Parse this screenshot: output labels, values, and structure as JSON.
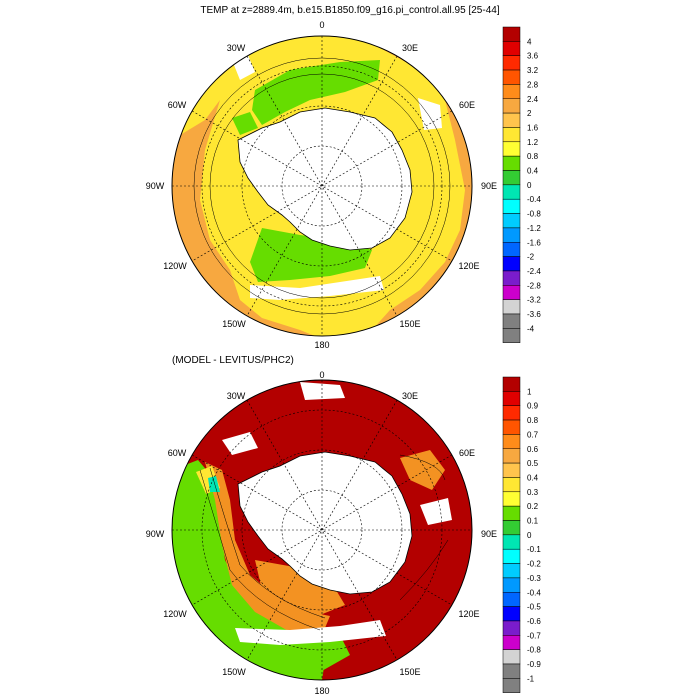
{
  "panel_top": {
    "title": "TEMP at z=2889.4m, b.e15.B1850.f09_g16.pi_control.all.95 [25-44]",
    "longitude_labels": {
      "lon0": "0",
      "lon30e": "30E",
      "lon60e": "60E",
      "lon90e": "90E",
      "lon120e": "120E",
      "lon150e": "150E",
      "lon180": "180",
      "lon150w": "150W",
      "lon120w": "120W",
      "lon90w": "90W",
      "lon60w": "60W",
      "lon30w": "30W"
    },
    "colorbar": {
      "labels": [
        "4",
        "3.6",
        "3.2",
        "2.8",
        "2.4",
        "2",
        "1.6",
        "1.2",
        "0.8",
        "0.4",
        "0",
        "-0.4",
        "-0.8",
        "-1.2",
        "-1.6",
        "-2",
        "-2.4",
        "-2.8",
        "-3.2",
        "-3.6",
        "-4"
      ],
      "colors": [
        "#b30000",
        "#e00000",
        "#ff2a00",
        "#ff5500",
        "#ff8c1a",
        "#f7a840",
        "#ffc44d",
        "#ffe733",
        "#ffff33",
        "#66dd00",
        "#33cc33",
        "#00e6b3",
        "#00ffff",
        "#00ccff",
        "#0099ff",
        "#0066ff",
        "#0000ff",
        "#7a1ccc",
        "#cc00cc",
        "#d3d3d3",
        "#808080"
      ]
    }
  },
  "panel_bottom": {
    "title": "(MODEL - LEVITUS/PHC2)",
    "longitude_labels": {
      "lon0": "0",
      "lon30e": "30E",
      "lon60e": "60E",
      "lon90e": "90E",
      "lon120e": "120E",
      "lon150e": "150E",
      "lon180": "180",
      "lon150w": "150W",
      "lon120w": "120W",
      "lon90w": "90W",
      "lon60w": "60W",
      "lon30w": "30W"
    },
    "colorbar": {
      "labels": [
        "1",
        "0.9",
        "0.8",
        "0.7",
        "0.6",
        "0.5",
        "0.4",
        "0.3",
        "0.2",
        "0.1",
        "0",
        "-0.1",
        "-0.2",
        "-0.3",
        "-0.4",
        "-0.5",
        "-0.6",
        "-0.7",
        "-0.8",
        "-0.9",
        "-1"
      ],
      "colors": [
        "#b30000",
        "#e00000",
        "#ff2a00",
        "#ff5500",
        "#ff8c1a",
        "#f7a840",
        "#ffc44d",
        "#ffe733",
        "#ffff33",
        "#66dd00",
        "#33cc33",
        "#00e6b3",
        "#00ffff",
        "#00ccff",
        "#0099ff",
        "#0066ff",
        "#0000ff",
        "#7a1ccc",
        "#cc00cc",
        "#d3d3d3",
        "#808080"
      ]
    }
  },
  "map_colors": {
    "ocean_top": "#ffe733",
    "warm_top": "#f7a840",
    "cool_top": "#66dd00",
    "ocean_bottom": "#b30000",
    "orange_bottom": "#f39222",
    "green_bottom": "#66dd00",
    "land": "#ffffff"
  }
}
